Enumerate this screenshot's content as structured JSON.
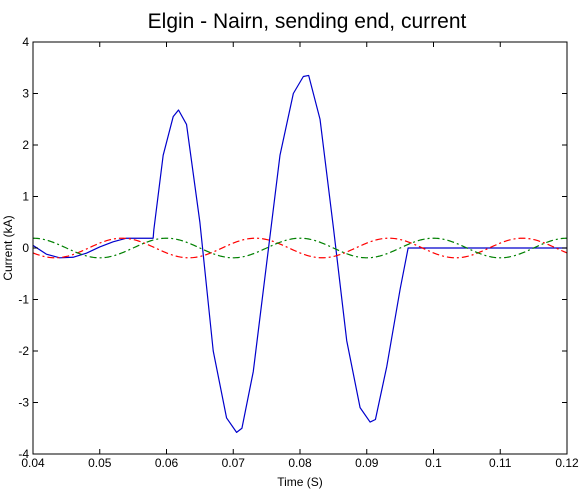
{
  "chart_data": {
    "type": "line",
    "title": "Elgin - Nairn, sending end, current",
    "xlabel": "Time (S)",
    "ylabel": "Current (kA)",
    "xlim": [
      0.04,
      0.12
    ],
    "ylim": [
      -4,
      4
    ],
    "x_ticks": [
      "0.04",
      "0.05",
      "0.06",
      "0.07",
      "0.08",
      "0.09",
      "0.1",
      "0.11",
      "0.12"
    ],
    "y_ticks": [
      "-4",
      "-3",
      "-2",
      "-1",
      "0",
      "1",
      "2",
      "3",
      "4"
    ],
    "grid": false,
    "legend": "none",
    "series": [
      {
        "style": "solid",
        "color": "#0000cc",
        "x": [
          0.04,
          0.042,
          0.044,
          0.046,
          0.048,
          0.05,
          0.052,
          0.054,
          0.056,
          0.058,
          0.0581,
          0.0595,
          0.061,
          0.0618,
          0.063,
          0.065,
          0.067,
          0.069,
          0.0705,
          0.0713,
          0.073,
          0.075,
          0.077,
          0.079,
          0.0805,
          0.0813,
          0.083,
          0.085,
          0.087,
          0.089,
          0.0905,
          0.0913,
          0.093,
          0.095,
          0.0962,
          0.0963,
          0.1,
          0.105,
          0.11,
          0.115,
          0.12
        ],
        "y": [
          0.05,
          -0.12,
          -0.19,
          -0.18,
          -0.1,
          0.02,
          0.12,
          0.19,
          0.19,
          0.19,
          0.35,
          1.8,
          2.55,
          2.68,
          2.4,
          0.5,
          -2.0,
          -3.3,
          -3.58,
          -3.5,
          -2.4,
          -0.3,
          1.8,
          3.0,
          3.33,
          3.35,
          2.5,
          0.4,
          -1.8,
          -3.1,
          -3.38,
          -3.33,
          -2.3,
          -0.8,
          0.0,
          0.0,
          0.0,
          0.0,
          0.0,
          0.0,
          0.0
        ]
      },
      {
        "style": "dash-dot",
        "color": "#ff0000",
        "amplitude": 0.19,
        "period": 0.02,
        "phase_deg": 210,
        "x_start": 0.04,
        "x_end": 0.12
      },
      {
        "style": "dash-dot",
        "color": "#008000",
        "amplitude": 0.19,
        "period": 0.02,
        "phase_deg": 90,
        "x_start": 0.04,
        "x_end": 0.12
      }
    ]
  }
}
